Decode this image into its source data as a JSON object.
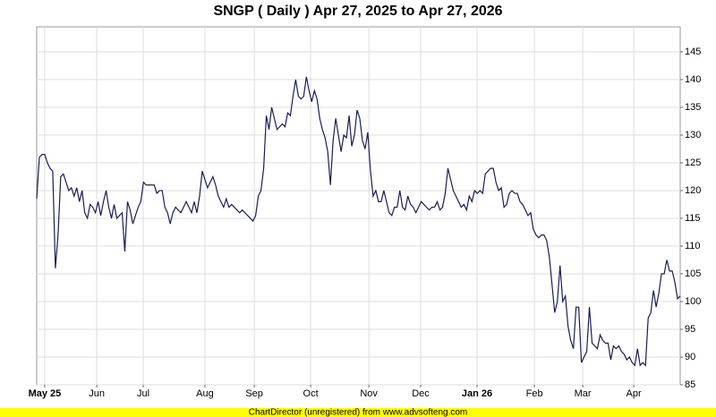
{
  "chart_data": {
    "type": "line",
    "title": "SNGP ( Daily ) Apr 27, 2025 to Apr 27, 2026",
    "footer": "ChartDirector (unregistered) from www.advsofteng.com",
    "grid": true,
    "series": [
      {
        "name": "SNGP",
        "color": "#1c1c55",
        "values": [
          118.5,
          126,
          126.5,
          126.5,
          125,
          124,
          123.5,
          106,
          112,
          122.5,
          123,
          121.5,
          120,
          120.5,
          119,
          120.5,
          118,
          120,
          116,
          115,
          117.5,
          117,
          116,
          118,
          115.5,
          118,
          120,
          117,
          115,
          117.5,
          115,
          115.5,
          116,
          109,
          118,
          116.5,
          114,
          115.5,
          117,
          118,
          121.5,
          121,
          121,
          121,
          121,
          119.5,
          120,
          120,
          117,
          116,
          114,
          116,
          117,
          116.5,
          116,
          117,
          118,
          117,
          116,
          118,
          116,
          119,
          123.5,
          122,
          120.5,
          121.5,
          122.5,
          121,
          119,
          118,
          117,
          118.5,
          117,
          117.5,
          117,
          116.5,
          116,
          116.5,
          116,
          115.5,
          115,
          114.5,
          115.5,
          119,
          120,
          124,
          133.5,
          131,
          135,
          133,
          131,
          131.5,
          132,
          131.5,
          134,
          133.5,
          137,
          140,
          137,
          136.5,
          137,
          140.5,
          138,
          136,
          138,
          136.5,
          133,
          131,
          129.5,
          127,
          121,
          129,
          133,
          130,
          127,
          130,
          129.5,
          133.5,
          128,
          130,
          134.5,
          133,
          129,
          127.5,
          130.5,
          123.5,
          119,
          120,
          118,
          118,
          120,
          118,
          116,
          115.5,
          117,
          117,
          120,
          117,
          116.5,
          119,
          117.5,
          117,
          116,
          117,
          118,
          117.5,
          117,
          116.5,
          117,
          117,
          118,
          116.5,
          117,
          119.5,
          124,
          122,
          120,
          119,
          118,
          117,
          117.5,
          116.5,
          119,
          118,
          120,
          119.5,
          120,
          119.5,
          123,
          123.5,
          124,
          124,
          121.5,
          120,
          120.5,
          117,
          117.5,
          119.5,
          120,
          119.5,
          119.5,
          118,
          117.5,
          116.5,
          115.5,
          116,
          113,
          112,
          111.5,
          112,
          112,
          111,
          108,
          103,
          98,
          100,
          106.5,
          100,
          101,
          95.5,
          93,
          91.5,
          99,
          99,
          89,
          90,
          91,
          99,
          92.5,
          92,
          91.5,
          94,
          93,
          92.5,
          92.5,
          89.5,
          92,
          91.5,
          92,
          91,
          90.5,
          89.5,
          90,
          89,
          88.5,
          91.5,
          88.5,
          89,
          88.5,
          97,
          98,
          102,
          99,
          101.5,
          105,
          105,
          107.5,
          105.5,
          105.5,
          103.5,
          100.5,
          101
        ]
      }
    ],
    "xlim": [
      0,
      241
    ],
    "xticks": [
      {
        "value": 3,
        "label": "May 25"
      },
      {
        "value": 22.5,
        "label": "Jun"
      },
      {
        "value": 39.9,
        "label": "Jul"
      },
      {
        "value": 63,
        "label": "Aug"
      },
      {
        "value": 81.5,
        "label": "Sep"
      },
      {
        "value": 102.6,
        "label": "Oct"
      },
      {
        "value": 124.4,
        "label": "Nov"
      },
      {
        "value": 143.8,
        "label": "Dec"
      },
      {
        "value": 164.9,
        "label": "Jan 26"
      },
      {
        "value": 186.4,
        "label": "Feb"
      },
      {
        "value": 204.5,
        "label": "Mar"
      },
      {
        "value": 223.6,
        "label": "Apr"
      }
    ],
    "ylim": [
      85,
      149.5
    ],
    "yticks": [
      85,
      90,
      95,
      100,
      105,
      110,
      115,
      120,
      125,
      130,
      135,
      140,
      145
    ]
  }
}
